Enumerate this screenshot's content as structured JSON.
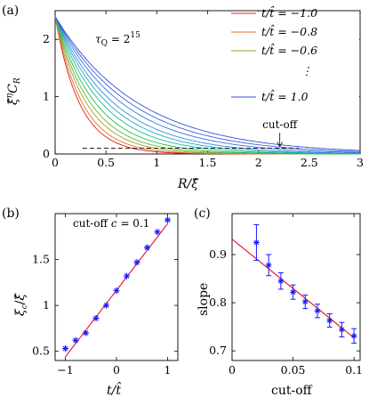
{
  "chart_data": [
    {
      "panel_label": "(a)",
      "type": "line",
      "xlabel": "R/ξ̂",
      "ylabel": "ξ̂ηC_R",
      "xlim": [
        0,
        3
      ],
      "ylim": [
        0,
        2.5
      ],
      "xticks": [
        "0",
        "0.5",
        "1",
        "1.5",
        "2",
        "2.5",
        "3"
      ],
      "yticks": [
        "0",
        "1",
        "2"
      ],
      "annotation": "τ_Q = 2^15",
      "cutoff_label": "cut-off",
      "cutoff_value": 0.1,
      "legend_position": "top-right",
      "legend": [
        {
          "label": "t/t̂ = −1.0",
          "color": "#e41a1c"
        },
        {
          "label": "t/t̂ = −0.8",
          "color": "#e8702a"
        },
        {
          "label": "t/t̂ = −0.6",
          "color": "#9aa42a"
        },
        {
          "label": "⋮",
          "color": ""
        },
        {
          "label": "t/t̂ = 1.0",
          "color": "#3a4fd6"
        }
      ],
      "series": [
        {
          "t": -1.0,
          "decay_length": 0.24,
          "color": "#e41a1c"
        },
        {
          "t": -0.8,
          "decay_length": 0.27,
          "color": "#e8702a"
        },
        {
          "t": -0.6,
          "decay_length": 0.31,
          "color": "#9aa42a"
        },
        {
          "t": -0.4,
          "decay_length": 0.35,
          "color": "#5fb82e"
        },
        {
          "t": -0.2,
          "decay_length": 0.4,
          "color": "#24b94a"
        },
        {
          "t": 0.0,
          "decay_length": 0.46,
          "color": "#1fb79a"
        },
        {
          "t": 0.2,
          "decay_length": 0.52,
          "color": "#22a8c4"
        },
        {
          "t": 0.4,
          "decay_length": 0.58,
          "color": "#2f8ed6"
        },
        {
          "t": 0.6,
          "decay_length": 0.66,
          "color": "#3672dc"
        },
        {
          "t": 0.8,
          "decay_length": 0.74,
          "color": "#3a5edb"
        },
        {
          "t": 1.0,
          "decay_length": 0.82,
          "color": "#3a4fd6"
        }
      ],
      "y_at_zero": 2.4
    },
    {
      "panel_label": "(b)",
      "type": "scatter",
      "annotation": "cut-off c = 0.1",
      "xlabel": "t/t̂",
      "ylabel": "ξc/ξ̂",
      "xlim": [
        -1.2,
        1.2
      ],
      "ylim": [
        0.4,
        2.0
      ],
      "xticks": [
        "−1",
        "0",
        "1"
      ],
      "yticks": [
        "0.5",
        "1",
        "1.5"
      ],
      "x": [
        -1.0,
        -0.8,
        -0.6,
        -0.4,
        -0.2,
        0.0,
        0.2,
        0.4,
        0.6,
        0.8,
        1.0
      ],
      "y": [
        0.53,
        0.62,
        0.7,
        0.86,
        1.0,
        1.16,
        1.32,
        1.47,
        1.63,
        1.8,
        1.93
      ],
      "fit": {
        "x": [
          -1.0,
          1.0
        ],
        "y": [
          0.44,
          1.89
        ]
      },
      "marker_color": "#1a1aff",
      "fit_color": "#e8102a"
    },
    {
      "panel_label": "(c)",
      "type": "scatter",
      "xlabel": "cut-off",
      "ylabel": "slope",
      "xlim": [
        0,
        0.105
      ],
      "ylim": [
        0.68,
        0.985
      ],
      "xticks": [
        "0",
        "0.05",
        "0.1"
      ],
      "yticks": [
        "0.7",
        "0.8",
        "0.9"
      ],
      "x": [
        0.02,
        0.03,
        0.04,
        0.05,
        0.06,
        0.07,
        0.08,
        0.09,
        0.1
      ],
      "y": [
        0.925,
        0.878,
        0.845,
        0.822,
        0.802,
        0.783,
        0.763,
        0.744,
        0.731
      ],
      "err": [
        0.037,
        0.022,
        0.017,
        0.015,
        0.014,
        0.014,
        0.014,
        0.015,
        0.015
      ],
      "fit": {
        "x": [
          0,
          0.1
        ],
        "y": [
          0.932,
          0.727
        ]
      },
      "marker_color": "#1a1aff",
      "fit_color": "#e8102a"
    }
  ]
}
